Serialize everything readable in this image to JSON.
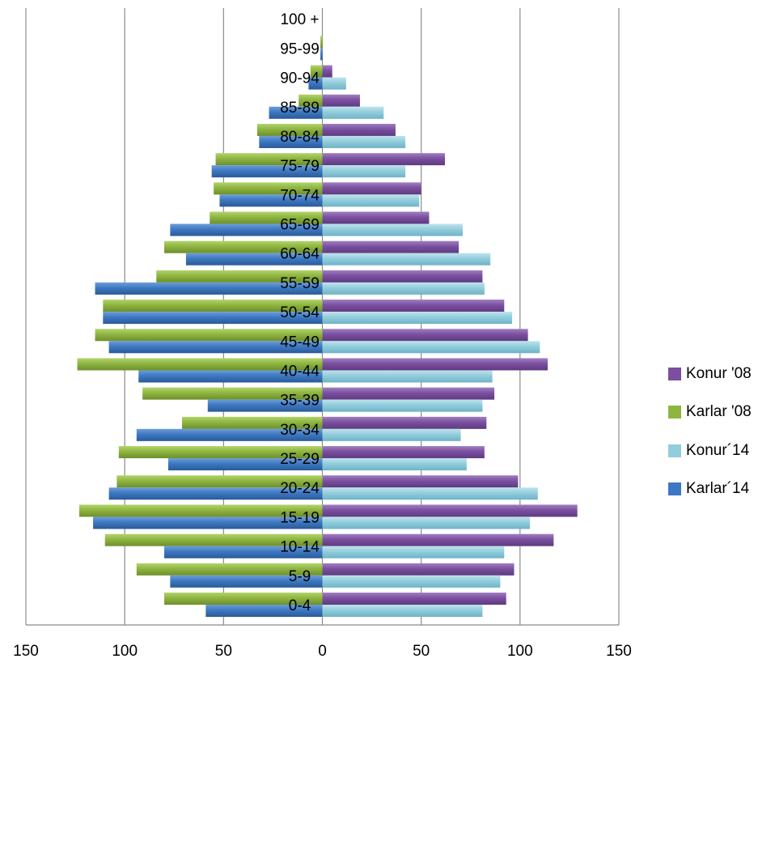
{
  "chart_data": {
    "type": "bar",
    "orientation": "horizontal",
    "subtype": "population-pyramid",
    "categories": [
      "0-4",
      "5-9",
      "10-14",
      "15-19",
      "20-24",
      "25-29",
      "30-34",
      "35-39",
      "40-44",
      "45-49",
      "50-54",
      "55-59",
      "60-64",
      "65-69",
      "70-74",
      "75-79",
      "80-84",
      "85-89",
      "90-94",
      "95-99",
      "100 +"
    ],
    "series": [
      {
        "name": "Konur '08",
        "color": "#7b4fa0",
        "side": "right",
        "values": [
          93,
          97,
          117,
          129,
          99,
          82,
          83,
          87,
          114,
          104,
          92,
          81,
          69,
          54,
          50,
          62,
          37,
          19,
          5,
          0,
          0
        ]
      },
      {
        "name": "Karlar '08",
        "color": "#8eb540",
        "side": "left",
        "values": [
          80,
          94,
          110,
          123,
          104,
          103,
          71,
          91,
          124,
          115,
          111,
          84,
          80,
          57,
          55,
          54,
          33,
          12,
          6,
          1,
          0
        ]
      },
      {
        "name": "Konur´14",
        "color": "#92cddc",
        "side": "right",
        "values": [
          81,
          90,
          92,
          105,
          109,
          73,
          70,
          81,
          86,
          110,
          96,
          82,
          85,
          71,
          49,
          42,
          42,
          31,
          12,
          0,
          0
        ]
      },
      {
        "name": "Karlar´14",
        "color": "#3d78c2",
        "side": "left",
        "values": [
          59,
          77,
          80,
          116,
          108,
          78,
          94,
          58,
          93,
          108,
          111,
          115,
          69,
          77,
          52,
          56,
          32,
          27,
          7,
          1,
          0
        ]
      }
    ],
    "x_ticks": [
      "150",
      "100",
      "50",
      "0",
      "50",
      "100",
      "150"
    ],
    "xlim": [
      -150,
      150
    ],
    "grid": "vertical",
    "legend_position": "right"
  }
}
